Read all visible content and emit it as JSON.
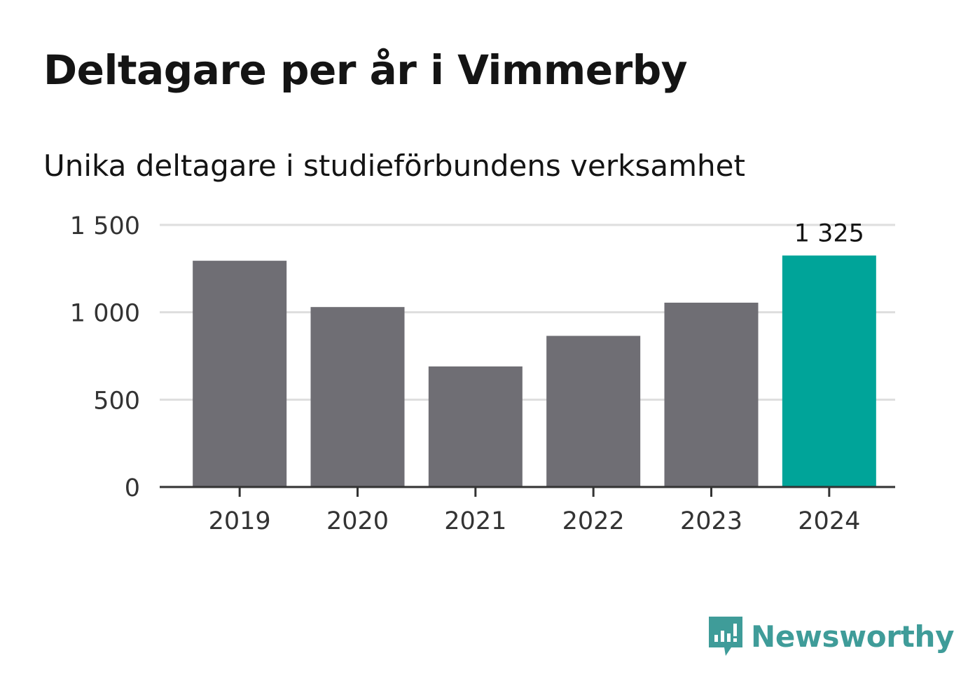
{
  "header": {
    "title": "Deltagare per år i Vimmerby",
    "subtitle": "Unika deltagare i studieförbundens verksamhet"
  },
  "brand": {
    "name": "Newsworthy"
  },
  "colors": {
    "bar": "#6f6e74",
    "highlight": "#00a499",
    "grid": "#dedede",
    "axis": "#333333",
    "text": "#333333",
    "brand": "#3f9c99"
  },
  "chart_data": {
    "type": "bar",
    "categories": [
      "2019",
      "2020",
      "2021",
      "2022",
      "2023",
      "2024"
    ],
    "values": [
      1295,
      1030,
      690,
      865,
      1055,
      1325
    ],
    "highlight_index": 5,
    "labels": {
      "5": "1 325"
    },
    "ylim": [
      0,
      1500
    ],
    "yticks": [
      0,
      500,
      1000,
      1500
    ],
    "ytick_labels": [
      "0",
      "500",
      "1 000",
      "1 500"
    ],
    "grid": true,
    "xlabel": "",
    "ylabel": ""
  }
}
